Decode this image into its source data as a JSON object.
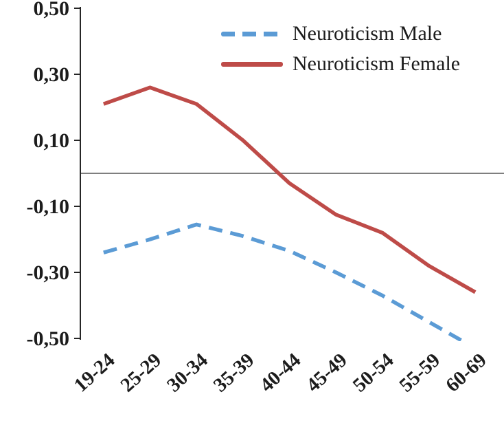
{
  "chart_data": {
    "type": "line",
    "title": "",
    "xlabel": "",
    "ylabel": "",
    "categories": [
      "19-24",
      "25-29",
      "30-34",
      "35-39",
      "40-44",
      "45-49",
      "50-54",
      "55-59",
      "60-69"
    ],
    "series": [
      {
        "name": "Neuroticism Male",
        "color": "#5b9bd5",
        "style": "dashed",
        "values": [
          -0.24,
          -0.2,
          -0.155,
          -0.19,
          -0.235,
          -0.3,
          -0.37,
          -0.45,
          -0.53
        ]
      },
      {
        "name": "Neuroticism Female",
        "color": "#be4b48",
        "style": "solid",
        "values": [
          0.21,
          0.26,
          0.21,
          0.1,
          -0.03,
          -0.125,
          -0.18,
          -0.28,
          -0.36
        ]
      }
    ],
    "yticks": [
      {
        "value": 0.5,
        "label": "0,50"
      },
      {
        "value": 0.3,
        "label": "0,30"
      },
      {
        "value": 0.1,
        "label": "0,10"
      },
      {
        "value": -0.1,
        "label": "-0,10"
      },
      {
        "value": -0.3,
        "label": "-0,30"
      },
      {
        "value": -0.5,
        "label": "-0,50"
      }
    ],
    "ylim": [
      -0.5,
      0.5
    ],
    "grid": "zero-baseline-only",
    "legend_position": "inside-top-right",
    "axis_color": "#262626",
    "zero_line_color": "#7f7f7f"
  }
}
